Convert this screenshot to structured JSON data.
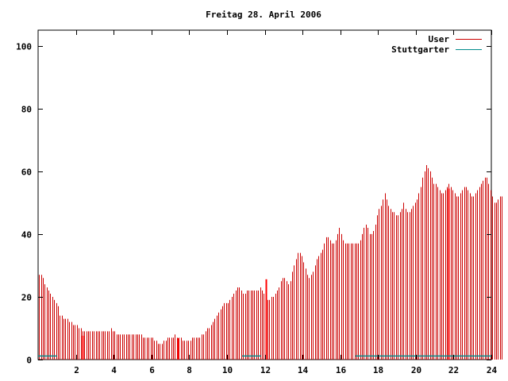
{
  "chart_data": {
    "type": "bar",
    "title": "Freitag 28. April 2006",
    "xlabel": "",
    "ylabel": "",
    "xlim": [
      0,
      24
    ],
    "ylim": [
      0,
      105
    ],
    "x_ticks": [
      {
        "value": 2,
        "label": "2"
      },
      {
        "value": 4,
        "label": "4"
      },
      {
        "value": 6,
        "label": "6"
      },
      {
        "value": 8,
        "label": "8"
      },
      {
        "value": 10,
        "label": "10"
      },
      {
        "value": 12,
        "label": "12"
      },
      {
        "value": 14,
        "label": "14"
      },
      {
        "value": 16,
        "label": "16"
      },
      {
        "value": 18,
        "label": "18"
      },
      {
        "value": 20,
        "label": "20"
      },
      {
        "value": 22,
        "label": "22"
      },
      {
        "value": 24,
        "label": "24"
      }
    ],
    "y_ticks": [
      {
        "value": 0,
        "label": "0"
      },
      {
        "value": 20,
        "label": "20"
      },
      {
        "value": 40,
        "label": "40"
      },
      {
        "value": 60,
        "label": "60"
      },
      {
        "value": 80,
        "label": "80"
      },
      {
        "value": 100,
        "label": "100"
      }
    ],
    "grid": false,
    "legend_position": "top-right",
    "series": [
      {
        "name": "User",
        "color": "#cc0000",
        "interval_hours": 0.1,
        "values": [
          27,
          27,
          26,
          24,
          23,
          22,
          21,
          20,
          19,
          18,
          17,
          14,
          14,
          13,
          13,
          13,
          12,
          12,
          11,
          11,
          11,
          10,
          10,
          9,
          9,
          9,
          9,
          9,
          9,
          9,
          9,
          9,
          9,
          9,
          9,
          9,
          9,
          9,
          10,
          9,
          9,
          8,
          8,
          8,
          8,
          8,
          8,
          8,
          8,
          8,
          8,
          8,
          8,
          8,
          8,
          7,
          7,
          7,
          7,
          7,
          7,
          6,
          6,
          5,
          5,
          5,
          6,
          6,
          7,
          7,
          7,
          7,
          8,
          7,
          7,
          7,
          6,
          6,
          6,
          6,
          6,
          7,
          7,
          7,
          7,
          7,
          8,
          8,
          9,
          10,
          10,
          11,
          12,
          13,
          14,
          15,
          16,
          17,
          18,
          18,
          18,
          19,
          20,
          21,
          22,
          23,
          23,
          22,
          21,
          21,
          22,
          22,
          22,
          22,
          22,
          22,
          22,
          23,
          22,
          21,
          20,
          19,
          19,
          20,
          20,
          21,
          22,
          23,
          25,
          26,
          26,
          25,
          24,
          25,
          28,
          30,
          32,
          34,
          34,
          33,
          31,
          29,
          27,
          26,
          27,
          28,
          30,
          32,
          33,
          34,
          35,
          37,
          39,
          39,
          38,
          37,
          37,
          38,
          40,
          42,
          40,
          38,
          37,
          37,
          37,
          37,
          37,
          37,
          37,
          37,
          38,
          40,
          42,
          43,
          42,
          40,
          40,
          41,
          43,
          46,
          48,
          49,
          51,
          53,
          51,
          49,
          48,
          47,
          47,
          46,
          46,
          47,
          48,
          50,
          48,
          47,
          47,
          48,
          49,
          50,
          51,
          53,
          55,
          58,
          60,
          62,
          61,
          60,
          58,
          56,
          56,
          55,
          54,
          53,
          53,
          54,
          55,
          56,
          55,
          54,
          53,
          52,
          52,
          53,
          54,
          55,
          55,
          54,
          53,
          52,
          52,
          53,
          54,
          55,
          56,
          57,
          58,
          58,
          56,
          54,
          52,
          50,
          50,
          51,
          52,
          52
        ],
        "spikes": [
          {
            "x": 2.35,
            "y": 7.6
          },
          {
            "x": 7.4,
            "y": 6.8
          },
          {
            "x": 12.05,
            "y": 25.6
          },
          {
            "x": 21.75,
            "y": 54.5
          }
        ]
      },
      {
        "name": "Stuttgarter",
        "color": "#008b8b",
        "values": [
          1,
          0,
          0,
          1,
          1
        ],
        "segments": [
          {
            "x_start": 0,
            "x_end": 1.0,
            "value": 1
          },
          {
            "x_start": 1.0,
            "x_end": 10.8,
            "value": 0
          },
          {
            "x_start": 10.8,
            "x_end": 11.8,
            "value": 1
          },
          {
            "x_start": 16.8,
            "x_end": 24.0,
            "value": 1
          }
        ]
      }
    ]
  }
}
